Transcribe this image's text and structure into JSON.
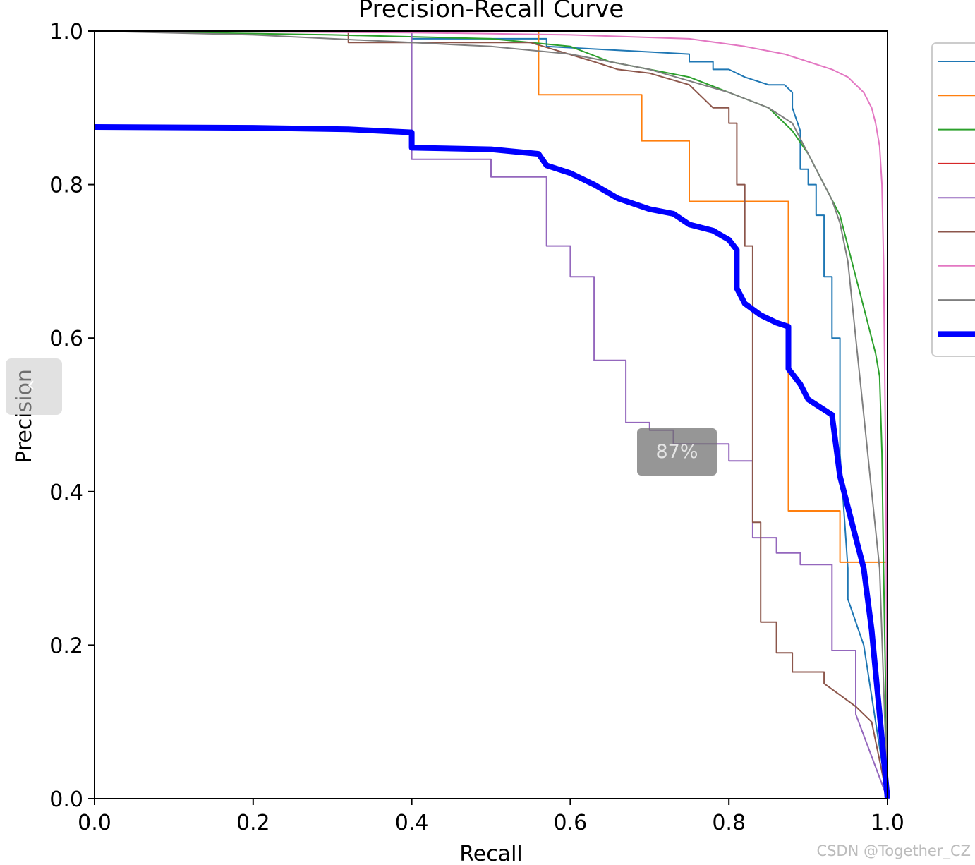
{
  "chart_data": {
    "type": "line",
    "title": "Precision-Recall Curve",
    "xlabel": "Recall",
    "ylabel": "Precision",
    "xlim": [
      0,
      1
    ],
    "ylim": [
      0,
      1
    ],
    "xticks": [
      "0.0",
      "0.2",
      "0.4",
      "0.6",
      "0.8",
      "1.0"
    ],
    "yticks": [
      "0.0",
      "0.2",
      "0.4",
      "0.6",
      "0.8",
      "1.0"
    ],
    "grid": false,
    "legend": "right, entry labels cut off",
    "series": [
      {
        "color": "#1f77b4",
        "width": 2,
        "x": [
          0,
          0.4,
          0.4,
          0.57,
          0.57,
          0.75,
          0.75,
          0.78,
          0.78,
          0.8,
          0.82,
          0.85,
          0.87,
          0.88,
          0.88,
          0.89,
          0.89,
          0.9,
          0.9,
          0.91,
          0.91,
          0.92,
          0.92,
          0.93,
          0.93,
          0.94,
          0.94,
          0.95,
          0.95,
          0.97,
          1.0
        ],
        "y": [
          1.0,
          1.0,
          0.99,
          0.99,
          0.98,
          0.97,
          0.96,
          0.96,
          0.95,
          0.95,
          0.94,
          0.93,
          0.93,
          0.92,
          0.9,
          0.87,
          0.82,
          0.82,
          0.8,
          0.8,
          0.76,
          0.76,
          0.68,
          0.68,
          0.6,
          0.6,
          0.45,
          0.3,
          0.26,
          0.2,
          0.0
        ]
      },
      {
        "color": "#ff7f0e",
        "width": 2,
        "x": [
          0,
          0.56,
          0.56,
          0.69,
          0.69,
          0.75,
          0.75,
          0.875,
          0.875,
          0.94,
          0.94,
          1.0,
          1.0
        ],
        "y": [
          1.0,
          1.0,
          0.917,
          0.917,
          0.857,
          0.857,
          0.778,
          0.778,
          0.375,
          0.375,
          0.308,
          0.308,
          0.0
        ]
      },
      {
        "color": "#2ca02c",
        "width": 2,
        "x": [
          0,
          0.3,
          0.5,
          0.6,
          0.65,
          0.7,
          0.75,
          0.8,
          0.85,
          0.88,
          0.9,
          0.92,
          0.94,
          0.95,
          0.96,
          0.97,
          0.98,
          0.985,
          0.99,
          0.993,
          0.995,
          1.0
        ],
        "y": [
          1.0,
          0.995,
          0.99,
          0.98,
          0.96,
          0.95,
          0.94,
          0.92,
          0.9,
          0.87,
          0.84,
          0.8,
          0.76,
          0.72,
          0.68,
          0.64,
          0.6,
          0.58,
          0.55,
          0.45,
          0.3,
          0.0
        ]
      },
      {
        "color": "#d62728",
        "width": 2,
        "x": [],
        "y": []
      },
      {
        "color": "#9467bd",
        "width": 2,
        "x": [
          0,
          0.4,
          0.4,
          0.5,
          0.5,
          0.57,
          0.57,
          0.6,
          0.6,
          0.63,
          0.63,
          0.67,
          0.67,
          0.7,
          0.7,
          0.73,
          0.73,
          0.8,
          0.8,
          0.83,
          0.83,
          0.86,
          0.86,
          0.89,
          0.89,
          0.93,
          0.93,
          0.96,
          0.96,
          1.0
        ],
        "y": [
          1.0,
          1.0,
          0.833,
          0.833,
          0.81,
          0.81,
          0.72,
          0.72,
          0.68,
          0.68,
          0.571,
          0.571,
          0.49,
          0.49,
          0.48,
          0.48,
          0.462,
          0.462,
          0.44,
          0.44,
          0.34,
          0.34,
          0.32,
          0.32,
          0.305,
          0.305,
          0.193,
          0.193,
          0.11,
          0.0
        ]
      },
      {
        "color": "#8c564b",
        "width": 2,
        "x": [
          0,
          0.32,
          0.32,
          0.55,
          0.63,
          0.66,
          0.7,
          0.75,
          0.78,
          0.8,
          0.8,
          0.81,
          0.81,
          0.82,
          0.82,
          0.83,
          0.83,
          0.84,
          0.84,
          0.86,
          0.86,
          0.88,
          0.88,
          0.92,
          0.92,
          0.94,
          0.96,
          0.98,
          1.0
        ],
        "y": [
          1.0,
          1.0,
          0.985,
          0.985,
          0.96,
          0.95,
          0.945,
          0.93,
          0.9,
          0.9,
          0.88,
          0.88,
          0.8,
          0.8,
          0.72,
          0.72,
          0.36,
          0.36,
          0.23,
          0.23,
          0.19,
          0.19,
          0.165,
          0.165,
          0.15,
          0.135,
          0.12,
          0.1,
          0.0
        ]
      },
      {
        "color": "#e377c2",
        "width": 2,
        "x": [
          0,
          0.4,
          0.6,
          0.75,
          0.82,
          0.87,
          0.9,
          0.93,
          0.95,
          0.96,
          0.97,
          0.98,
          0.985,
          0.99,
          0.993,
          0.995,
          0.998,
          1.0
        ],
        "y": [
          1.0,
          0.998,
          0.995,
          0.99,
          0.98,
          0.97,
          0.96,
          0.95,
          0.94,
          0.93,
          0.92,
          0.9,
          0.88,
          0.85,
          0.8,
          0.7,
          0.4,
          0.0
        ]
      },
      {
        "color": "#7f7f7f",
        "width": 2,
        "x": [
          0,
          0.2,
          0.3,
          0.4,
          0.5,
          0.6,
          0.7,
          0.75,
          0.8,
          0.85,
          0.88,
          0.9,
          0.92,
          0.93,
          0.94,
          0.95,
          0.96,
          0.97,
          0.98,
          0.99,
          1.0
        ],
        "y": [
          1.0,
          0.995,
          0.99,
          0.985,
          0.98,
          0.97,
          0.95,
          0.935,
          0.92,
          0.9,
          0.88,
          0.84,
          0.8,
          0.78,
          0.75,
          0.7,
          0.6,
          0.5,
          0.4,
          0.3,
          0.0
        ]
      },
      {
        "color": "#0000ff",
        "width": 8,
        "x": [
          0,
          0.2,
          0.32,
          0.4,
          0.4,
          0.5,
          0.56,
          0.57,
          0.6,
          0.63,
          0.66,
          0.68,
          0.7,
          0.73,
          0.75,
          0.78,
          0.8,
          0.81,
          0.81,
          0.82,
          0.84,
          0.86,
          0.875,
          0.875,
          0.89,
          0.9,
          0.93,
          0.94,
          0.95,
          0.96,
          0.97,
          0.98,
          0.99,
          1.0
        ],
        "y": [
          0.875,
          0.874,
          0.872,
          0.868,
          0.848,
          0.846,
          0.84,
          0.825,
          0.815,
          0.8,
          0.782,
          0.775,
          0.768,
          0.762,
          0.748,
          0.74,
          0.728,
          0.715,
          0.665,
          0.645,
          0.63,
          0.62,
          0.615,
          0.56,
          0.54,
          0.52,
          0.5,
          0.42,
          0.38,
          0.34,
          0.3,
          0.22,
          0.11,
          0.0
        ]
      }
    ]
  },
  "overlay": {
    "zoom_level": "87%",
    "prev_icon": "‹",
    "watermark": "CSDN @Together_CZ"
  }
}
